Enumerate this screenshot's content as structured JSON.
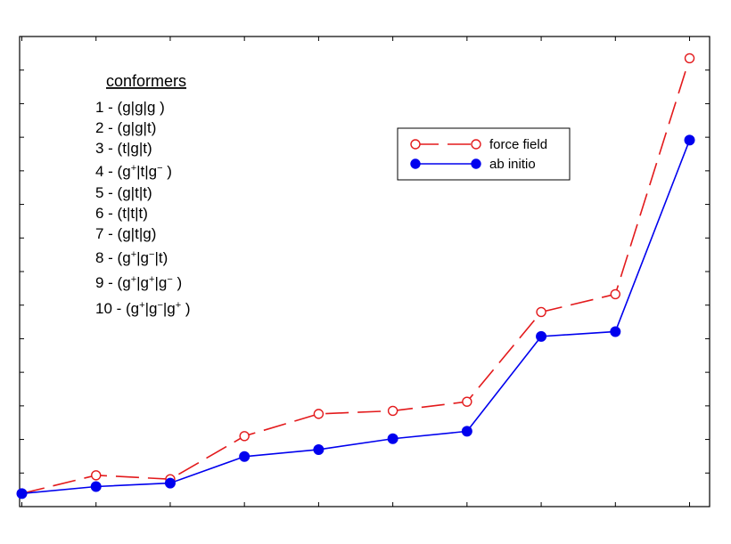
{
  "chart_data": {
    "type": "line",
    "title": "",
    "xlabel": "",
    "ylabel": "",
    "x": [
      1,
      2,
      3,
      4,
      5,
      6,
      7,
      8,
      9,
      10
    ],
    "xlim": [
      0.97,
      10.27
    ],
    "ylim": [
      -0.03,
      1.05
    ],
    "xtick_count": 10,
    "ytick_count": 15,
    "grid": false,
    "legend_position": "upper-middle-right",
    "series": [
      {
        "name": "force field",
        "values": [
          0.0,
          0.042,
          0.033,
          0.132,
          0.183,
          0.19,
          0.211,
          0.417,
          0.458,
          1.0
        ],
        "color": "#e31a1c",
        "marker": "open-circle",
        "linestyle": "dashed"
      },
      {
        "name": "ab initio",
        "values": [
          0.0,
          0.016,
          0.024,
          0.085,
          0.101,
          0.126,
          0.143,
          0.361,
          0.372,
          0.812
        ],
        "color": "#0000ee",
        "marker": "filled-circle",
        "linestyle": "solid"
      }
    ],
    "annotations": {
      "title": "conformers",
      "items": [
        [
          {
            "t": "1  -  (g|g|g )"
          }
        ],
        [
          {
            "t": "2  -  (g|g|t)"
          }
        ],
        [
          {
            "t": "3  -  (t|g|t)"
          }
        ],
        [
          {
            "t": "4  -  (g"
          },
          {
            "t": "+",
            "sup": true
          },
          {
            "t": "|t|g"
          },
          {
            "t": "−",
            "sup": true
          },
          {
            "t": " )"
          }
        ],
        [
          {
            "t": "5  -  (g|t|t)"
          }
        ],
        [
          {
            "t": "6  -  (t|t|t)"
          }
        ],
        [
          {
            "t": "7  -  (g|t|g)"
          }
        ],
        [
          {
            "t": "8  -  (g"
          },
          {
            "t": "+",
            "sup": true
          },
          {
            "t": "|g"
          },
          {
            "t": "−",
            "sup": true
          },
          {
            "t": "|t)"
          }
        ],
        [
          {
            "t": "9  -  (g"
          },
          {
            "t": "+",
            "sup": true
          },
          {
            "t": "|g"
          },
          {
            "t": "+",
            "sup": true
          },
          {
            "t": "|g"
          },
          {
            "t": "−",
            "sup": true
          },
          {
            "t": " )"
          }
        ],
        [
          {
            "t": "10 - (g"
          },
          {
            "t": "+",
            "sup": true
          },
          {
            "t": "|g"
          },
          {
            "t": "−",
            "sup": true
          },
          {
            "t": "|g"
          },
          {
            "t": "+",
            "sup": true
          },
          {
            "t": " )"
          }
        ]
      ]
    }
  }
}
